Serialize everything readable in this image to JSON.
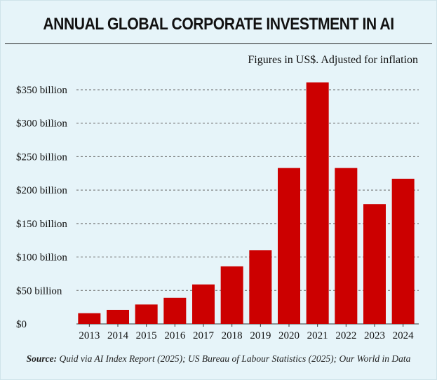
{
  "title": "ANNUAL GLOBAL CORPORATE INVESTMENT IN AI",
  "subtitle": "Figures in US$. Adjusted for inflation",
  "source": {
    "label": "Source:",
    "text": " Quid via AI Index Report (2025); US Bureau of Labour Statistics (2025); Our World in Data"
  },
  "colors": {
    "bar": "#cc0000",
    "grid": "#666666",
    "background": "#e6f4f9"
  },
  "chart_data": {
    "type": "bar",
    "title": "ANNUAL GLOBAL CORPORATE INVESTMENT IN AI",
    "xlabel": "",
    "ylabel": "",
    "ylim": [
      0,
      350
    ],
    "yticks": [
      0,
      50,
      100,
      150,
      200,
      250,
      300,
      350
    ],
    "ytick_labels": [
      "$0",
      "$50 billion",
      "$100 billion",
      "$150 billion",
      "$200 billion",
      "$250 billion",
      "$300 billion",
      "$350 billion"
    ],
    "categories": [
      "2013",
      "2014",
      "2015",
      "2016",
      "2017",
      "2018",
      "2019",
      "2020",
      "2021",
      "2022",
      "2023",
      "2024"
    ],
    "values": [
      16,
      21,
      29,
      39,
      59,
      86,
      110,
      233,
      361,
      233,
      179,
      217
    ],
    "grid": true,
    "legend": "none"
  }
}
